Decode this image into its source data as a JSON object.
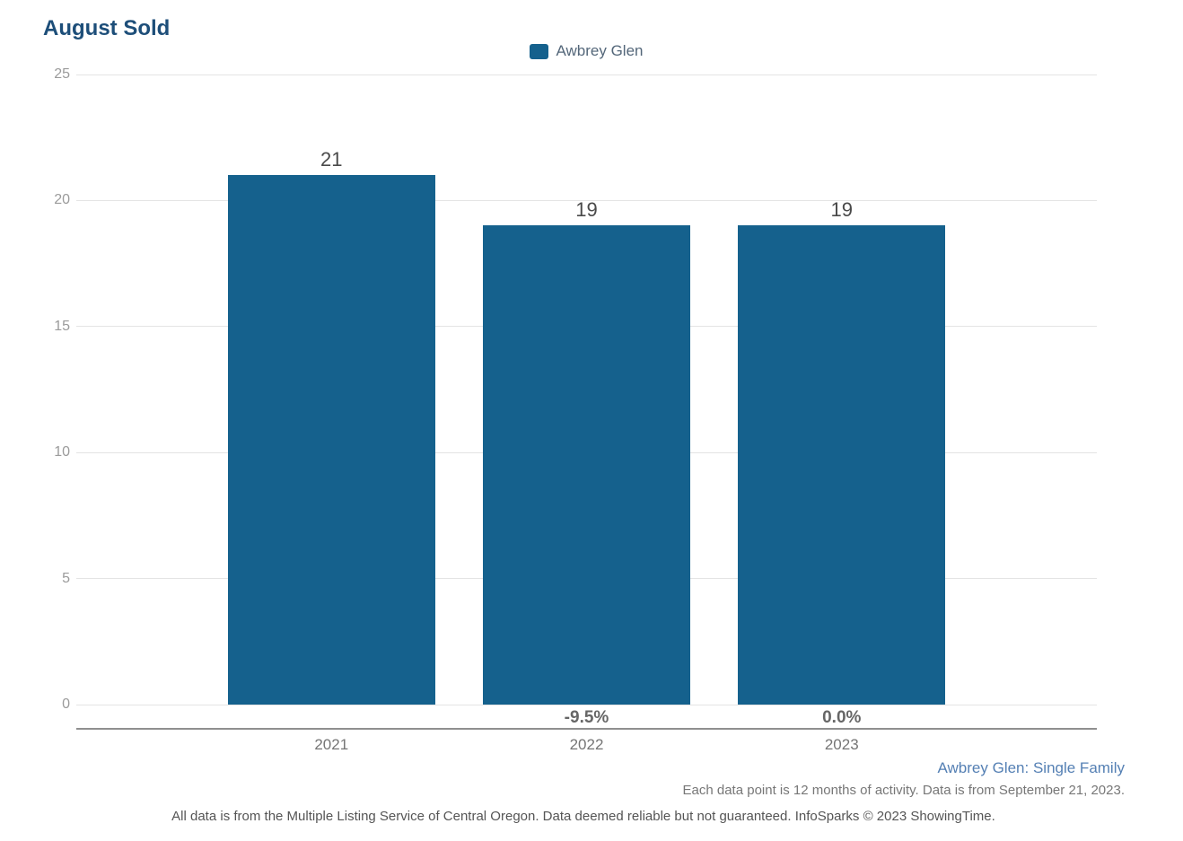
{
  "chart_data": {
    "type": "bar",
    "title": "August Sold",
    "categories": [
      "2021",
      "2022",
      "2023"
    ],
    "series": [
      {
        "name": "Awbrey Glen",
        "values": [
          21,
          19,
          19
        ]
      }
    ],
    "value_labels": [
      "21",
      "19",
      "19"
    ],
    "pct_change_labels": [
      "",
      "-9.5%",
      "0.0%"
    ],
    "ylim": [
      0,
      25
    ],
    "yticks": [
      0,
      5,
      10,
      15,
      20,
      25
    ],
    "grid": true,
    "legend_position": "top-center",
    "bar_color": "#15618d",
    "title_color": "#1d4e79"
  },
  "footer": {
    "series_note": "Awbrey Glen: Single Family",
    "data_note": "Each data point is 12 months of activity. Data is from September 21, 2023.",
    "disclaimer": "All data is from the Multiple Listing Service of Central Oregon. Data deemed reliable but not guaranteed. InfoSparks © 2023 ShowingTime."
  }
}
